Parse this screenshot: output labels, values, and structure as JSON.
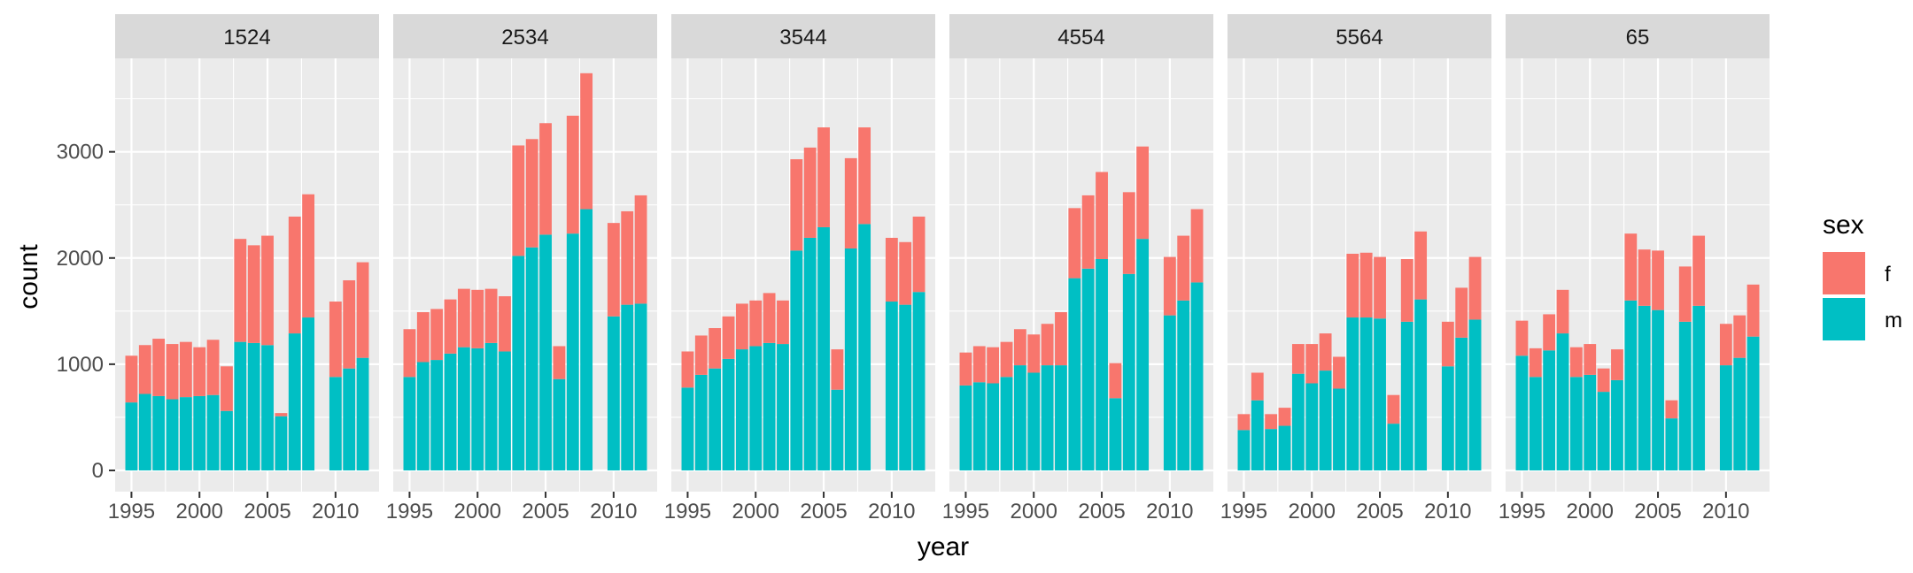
{
  "chart_data": {
    "type": "bar",
    "stacked": true,
    "facet_variable": "age group",
    "xlabel": "year",
    "ylabel": "count",
    "ylim": [
      -200,
      3880
    ],
    "yticks": [
      0,
      1000,
      2000,
      3000
    ],
    "xlim": [
      1993.8,
      2013.2
    ],
    "xticks": [
      1995,
      2000,
      2005,
      2010
    ],
    "grid": true,
    "legend": {
      "title": "sex",
      "position": "right"
    },
    "colors": {
      "f": "#F8766D",
      "m": "#00BFC4"
    },
    "years": [
      1995,
      1996,
      1997,
      1998,
      1999,
      2000,
      2001,
      2002,
      2003,
      2004,
      2005,
      2006,
      2007,
      2008,
      2010,
      2011,
      2012
    ],
    "panels": [
      {
        "label": "1524",
        "series": [
          {
            "name": "m",
            "values": [
              640,
              720,
              700,
              670,
              690,
              700,
              710,
              560,
              1210,
              1200,
              1180,
              510,
              1290,
              1440,
              880,
              960,
              1060
            ]
          },
          {
            "name": "f",
            "values": [
              440,
              460,
              540,
              520,
              520,
              460,
              520,
              420,
              970,
              920,
              1030,
              30,
              1100,
              1160,
              710,
              830,
              900
            ]
          }
        ]
      },
      {
        "label": "2534",
        "series": [
          {
            "name": "m",
            "values": [
              880,
              1020,
              1040,
              1100,
              1160,
              1150,
              1200,
              1120,
              2020,
              2100,
              2220,
              860,
              2230,
              2460,
              1450,
              1560,
              1570
            ]
          },
          {
            "name": "f",
            "values": [
              450,
              470,
              480,
              510,
              550,
              550,
              510,
              520,
              1040,
              1020,
              1050,
              310,
              1110,
              1280,
              880,
              880,
              1020
            ]
          }
        ]
      },
      {
        "label": "3544",
        "series": [
          {
            "name": "m",
            "values": [
              780,
              900,
              960,
              1050,
              1140,
              1170,
              1200,
              1190,
              2070,
              2190,
              2290,
              760,
              2090,
              2320,
              1590,
              1560,
              1680
            ]
          },
          {
            "name": "f",
            "values": [
              340,
              370,
              380,
              400,
              430,
              430,
              470,
              410,
              860,
              850,
              940,
              380,
              850,
              910,
              600,
              590,
              710
            ]
          }
        ]
      },
      {
        "label": "4554",
        "series": [
          {
            "name": "m",
            "values": [
              800,
              830,
              820,
              880,
              990,
              920,
              990,
              990,
              1810,
              1900,
              1990,
              680,
              1850,
              2180,
              1460,
              1600,
              1770
            ]
          },
          {
            "name": "f",
            "values": [
              310,
              340,
              340,
              330,
              340,
              360,
              390,
              500,
              660,
              690,
              820,
              330,
              770,
              870,
              550,
              610,
              690
            ]
          }
        ]
      },
      {
        "label": "5564",
        "series": [
          {
            "name": "m",
            "values": [
              380,
              660,
              390,
              420,
              910,
              820,
              940,
              770,
              1440,
              1440,
              1430,
              440,
              1400,
              1610,
              980,
              1250,
              1420
            ]
          },
          {
            "name": "f",
            "values": [
              150,
              260,
              140,
              170,
              280,
              370,
              350,
              300,
              600,
              610,
              580,
              270,
              590,
              640,
              420,
              470,
              590
            ]
          }
        ]
      },
      {
        "label": "65",
        "series": [
          {
            "name": "m",
            "values": [
              1080,
              880,
              1130,
              1290,
              880,
              900,
              740,
              850,
              1600,
              1550,
              1510,
              490,
              1400,
              1550,
              990,
              1060,
              1260
            ]
          },
          {
            "name": "f",
            "values": [
              330,
              270,
              340,
              410,
              280,
              290,
              220,
              290,
              630,
              530,
              560,
              170,
              520,
              660,
              390,
              400,
              490
            ]
          }
        ]
      }
    ]
  }
}
